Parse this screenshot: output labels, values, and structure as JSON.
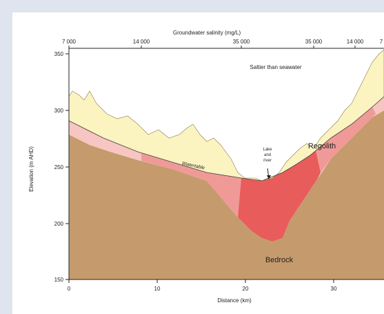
{
  "top_axis": {
    "title": "Groundwater salinity (mg/L)",
    "labels": [
      "7 000",
      "14 000",
      "35 000",
      "35 000",
      "14 000",
      "7"
    ]
  },
  "y_axis": {
    "label": "Elevation (m AHD)",
    "ticks": [
      350,
      300,
      250,
      200,
      150
    ]
  },
  "x_axis": {
    "label": "Distance (km)",
    "ticks": [
      0,
      10,
      20,
      30
    ]
  },
  "annotations": {
    "saltier": "Saltier than seawater",
    "lake": [
      "Lake",
      "and",
      "river"
    ],
    "regolith": "Regolith",
    "watertable": "Watertable",
    "bedrock": "Bedrock"
  }
}
